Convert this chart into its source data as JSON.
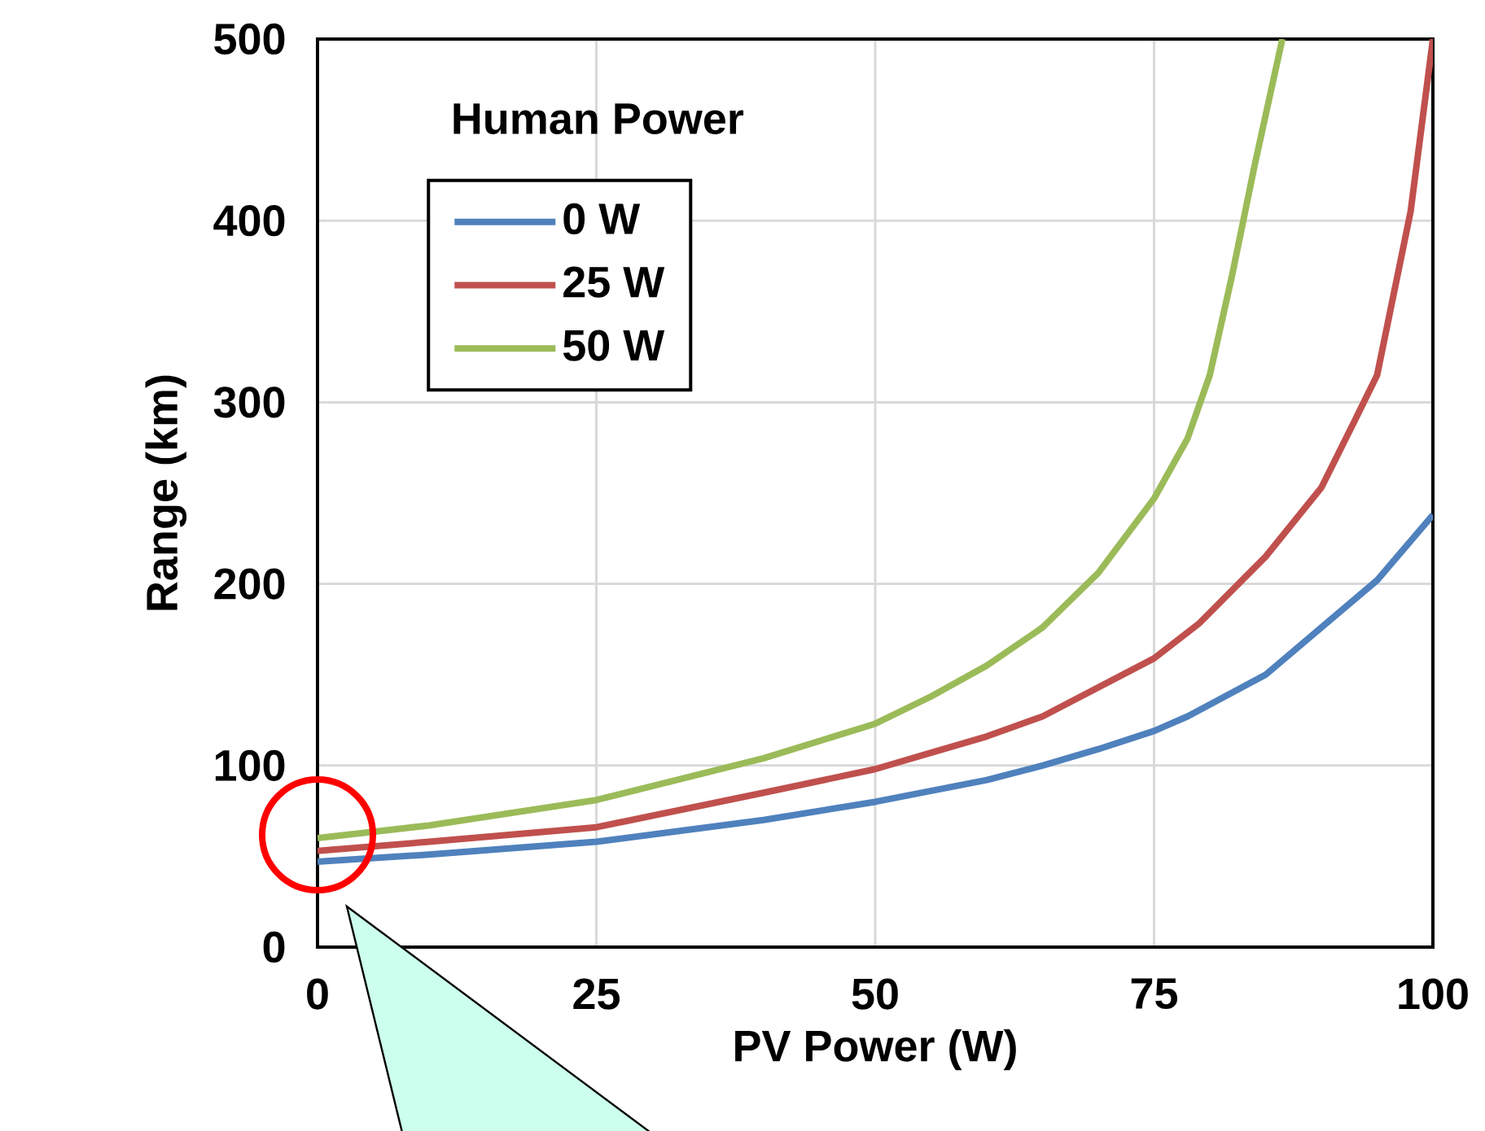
{
  "chart_data": {
    "type": "line",
    "xlabel": "PV Power (W)",
    "ylabel": "Range (km)",
    "legend_title": "Human Power",
    "xlim": [
      0,
      100
    ],
    "ylim": [
      0,
      500
    ],
    "xticks": [
      0,
      25,
      50,
      75,
      100
    ],
    "yticks": [
      0,
      100,
      200,
      300,
      400,
      500
    ],
    "grid": true,
    "legend": "top left",
    "marker": "none",
    "line_style": "solid",
    "series": [
      {
        "name": "0 W",
        "color": "#4f81bd",
        "x": [
          0,
          10,
          25,
          40,
          50,
          60,
          65,
          70,
          75,
          78,
          85,
          90,
          95,
          100
        ],
        "values": [
          47,
          51,
          58,
          70,
          80,
          92,
          100,
          109,
          119,
          127,
          150,
          176,
          202,
          238
        ]
      },
      {
        "name": "25 W",
        "color": "#c0504d",
        "x": [
          0,
          10,
          25,
          40,
          50,
          55,
          60,
          65,
          70,
          75,
          79,
          85,
          90,
          93,
          95,
          98,
          100
        ],
        "values": [
          53,
          58,
          66,
          85,
          98,
          107,
          116,
          127,
          143,
          159,
          178,
          215,
          253,
          290,
          315,
          405,
          500
        ]
      },
      {
        "name": "50 W",
        "color": "#9bbb59",
        "x": [
          0,
          10,
          25,
          40,
          50,
          55,
          60,
          65,
          70,
          75,
          78,
          80,
          82,
          84,
          86.5
        ],
        "values": [
          60,
          67,
          81,
          104,
          123,
          138,
          155,
          176,
          206,
          247,
          280,
          315,
          370,
          430,
          500
        ]
      }
    ]
  }
}
